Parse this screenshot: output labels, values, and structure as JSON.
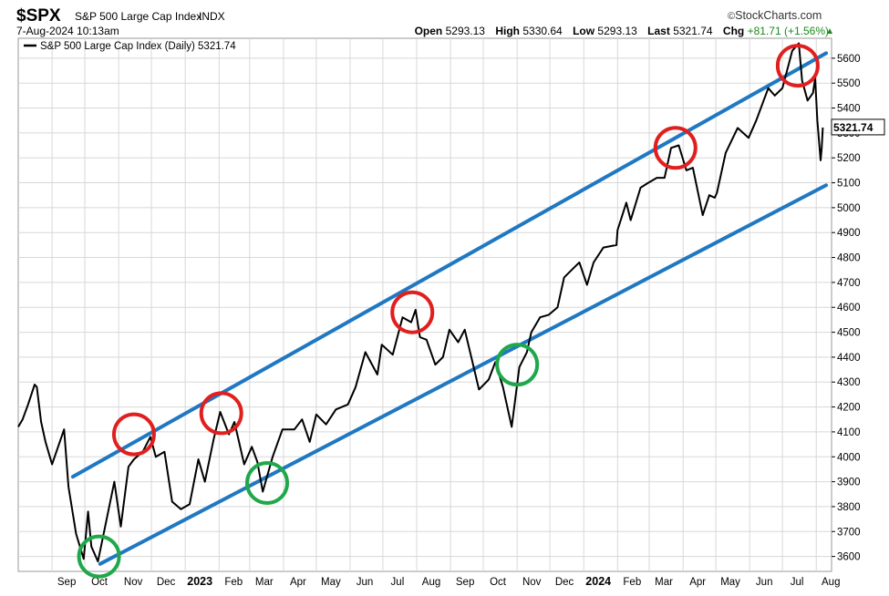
{
  "header": {
    "symbol": "$SPX",
    "name": "S&P 500 Large Cap Index",
    "exchange": "INDX",
    "brand": "StockCharts.com",
    "timestamp": "7-Aug-2024 10:13am",
    "open_label": "Open",
    "open": "5293.13",
    "high_label": "High",
    "high": "5330.64",
    "low_label": "Low",
    "low": "5293.13",
    "last_label": "Last",
    "last": "5321.74",
    "chg_label": "Chg",
    "chg": "+81.71 (+1.56%)"
  },
  "legend": {
    "label": "S&P 500 Large Cap Index (Daily) 5321.74"
  },
  "colors": {
    "price": "#000000",
    "channel": "#1f78c1",
    "resistance": "#e01f1f",
    "support": "#1fa84a",
    "grid": "#d8d8d8"
  },
  "chart_data": {
    "type": "line",
    "ylim": [
      3540,
      5680
    ],
    "y_ticks": [
      3600,
      3700,
      3800,
      3900,
      4000,
      4100,
      4200,
      4300,
      4400,
      4500,
      4600,
      4700,
      4800,
      4900,
      5000,
      5100,
      5200,
      5300,
      5400,
      5500,
      5600
    ],
    "x_range": [
      "2022-08-01",
      "2024-08-15"
    ],
    "x_ticks": [
      {
        "label": "Sep",
        "date": "2022-09-01"
      },
      {
        "label": "Oct",
        "date": "2022-10-01"
      },
      {
        "label": "Nov",
        "date": "2022-11-01"
      },
      {
        "label": "Dec",
        "date": "2022-12-01"
      },
      {
        "label": "2023",
        "date": "2023-01-01",
        "bold": true
      },
      {
        "label": "Feb",
        "date": "2023-02-01"
      },
      {
        "label": "Mar",
        "date": "2023-03-01"
      },
      {
        "label": "Apr",
        "date": "2023-04-01"
      },
      {
        "label": "May",
        "date": "2023-05-01"
      },
      {
        "label": "Jun",
        "date": "2023-06-01"
      },
      {
        "label": "Jul",
        "date": "2023-07-01"
      },
      {
        "label": "Aug",
        "date": "2023-08-01"
      },
      {
        "label": "Sep",
        "date": "2023-09-01"
      },
      {
        "label": "Oct",
        "date": "2023-10-01"
      },
      {
        "label": "Nov",
        "date": "2023-11-01"
      },
      {
        "label": "Dec",
        "date": "2023-12-01"
      },
      {
        "label": "2024",
        "date": "2024-01-01",
        "bold": true
      },
      {
        "label": "Feb",
        "date": "2024-02-01"
      },
      {
        "label": "Mar",
        "date": "2024-03-01"
      },
      {
        "label": "Apr",
        "date": "2024-04-01"
      },
      {
        "label": "May",
        "date": "2024-05-01"
      },
      {
        "label": "Jun",
        "date": "2024-06-01"
      },
      {
        "label": "Jul",
        "date": "2024-07-01"
      },
      {
        "label": "Aug",
        "date": "2024-08-01"
      }
    ],
    "series": [
      {
        "values": [
          [
            "2022-08-01",
            4120
          ],
          [
            "2022-08-05",
            4150
          ],
          [
            "2022-08-10",
            4210
          ],
          [
            "2022-08-16",
            4290
          ],
          [
            "2022-08-18",
            4280
          ],
          [
            "2022-08-22",
            4140
          ],
          [
            "2022-08-26",
            4060
          ],
          [
            "2022-09-01",
            3970
          ],
          [
            "2022-09-12",
            4110
          ],
          [
            "2022-09-16",
            3880
          ],
          [
            "2022-09-23",
            3690
          ],
          [
            "2022-09-30",
            3590
          ],
          [
            "2022-10-04",
            3780
          ],
          [
            "2022-10-07",
            3640
          ],
          [
            "2022-10-13",
            3580
          ],
          [
            "2022-10-21",
            3750
          ],
          [
            "2022-10-28",
            3900
          ],
          [
            "2022-11-03",
            3720
          ],
          [
            "2022-11-10",
            3960
          ],
          [
            "2022-11-15",
            3990
          ],
          [
            "2022-11-23",
            4020
          ],
          [
            "2022-11-30",
            4080
          ],
          [
            "2022-12-05",
            4000
          ],
          [
            "2022-12-13",
            4020
          ],
          [
            "2022-12-20",
            3820
          ],
          [
            "2022-12-28",
            3790
          ],
          [
            "2023-01-05",
            3810
          ],
          [
            "2023-01-13",
            3990
          ],
          [
            "2023-01-19",
            3900
          ],
          [
            "2023-01-27",
            4070
          ],
          [
            "2023-02-02",
            4180
          ],
          [
            "2023-02-10",
            4090
          ],
          [
            "2023-02-15",
            4140
          ],
          [
            "2023-02-24",
            3970
          ],
          [
            "2023-03-03",
            4040
          ],
          [
            "2023-03-08",
            3980
          ],
          [
            "2023-03-13",
            3860
          ],
          [
            "2023-03-22",
            4000
          ],
          [
            "2023-03-31",
            4110
          ],
          [
            "2023-04-11",
            4110
          ],
          [
            "2023-04-18",
            4150
          ],
          [
            "2023-04-25",
            4060
          ],
          [
            "2023-05-01",
            4170
          ],
          [
            "2023-05-10",
            4130
          ],
          [
            "2023-05-19",
            4190
          ],
          [
            "2023-05-30",
            4210
          ],
          [
            "2023-06-06",
            4280
          ],
          [
            "2023-06-15",
            4420
          ],
          [
            "2023-06-26",
            4330
          ],
          [
            "2023-06-30",
            4450
          ],
          [
            "2023-07-10",
            4410
          ],
          [
            "2023-07-19",
            4560
          ],
          [
            "2023-07-27",
            4540
          ],
          [
            "2023-07-31",
            4590
          ],
          [
            "2023-08-04",
            4480
          ],
          [
            "2023-08-10",
            4470
          ],
          [
            "2023-08-18",
            4370
          ],
          [
            "2023-08-25",
            4400
          ],
          [
            "2023-08-31",
            4510
          ],
          [
            "2023-09-08",
            4460
          ],
          [
            "2023-09-14",
            4510
          ],
          [
            "2023-09-20",
            4400
          ],
          [
            "2023-09-27",
            4270
          ],
          [
            "2023-10-06",
            4310
          ],
          [
            "2023-10-12",
            4380
          ],
          [
            "2023-10-19",
            4280
          ],
          [
            "2023-10-27",
            4120
          ],
          [
            "2023-11-03",
            4360
          ],
          [
            "2023-11-10",
            4420
          ],
          [
            "2023-11-14",
            4500
          ],
          [
            "2023-11-22",
            4560
          ],
          [
            "2023-11-30",
            4570
          ],
          [
            "2023-12-08",
            4600
          ],
          [
            "2023-12-14",
            4720
          ],
          [
            "2023-12-21",
            4750
          ],
          [
            "2023-12-28",
            4780
          ],
          [
            "2024-01-04",
            4690
          ],
          [
            "2024-01-10",
            4780
          ],
          [
            "2024-01-19",
            4840
          ],
          [
            "2024-01-31",
            4850
          ],
          [
            "2024-02-01",
            4910
          ],
          [
            "2024-02-09",
            5020
          ],
          [
            "2024-02-13",
            4950
          ],
          [
            "2024-02-22",
            5080
          ],
          [
            "2024-02-29",
            5100
          ],
          [
            "2024-03-08",
            5120
          ],
          [
            "2024-03-15",
            5120
          ],
          [
            "2024-03-21",
            5240
          ],
          [
            "2024-03-28",
            5250
          ],
          [
            "2024-04-04",
            5150
          ],
          [
            "2024-04-10",
            5160
          ],
          [
            "2024-04-19",
            4970
          ],
          [
            "2024-04-25",
            5050
          ],
          [
            "2024-04-30",
            5040
          ],
          [
            "2024-05-02",
            5060
          ],
          [
            "2024-05-10",
            5220
          ],
          [
            "2024-05-21",
            5320
          ],
          [
            "2024-05-31",
            5280
          ],
          [
            "2024-06-07",
            5350
          ],
          [
            "2024-06-18",
            5480
          ],
          [
            "2024-06-24",
            5450
          ],
          [
            "2024-07-01",
            5480
          ],
          [
            "2024-07-10",
            5630
          ],
          [
            "2024-07-16",
            5660
          ],
          [
            "2024-07-19",
            5510
          ],
          [
            "2024-07-24",
            5430
          ],
          [
            "2024-07-29",
            5460
          ],
          [
            "2024-07-31",
            5520
          ],
          [
            "2024-08-02",
            5350
          ],
          [
            "2024-08-05",
            5190
          ],
          [
            "2024-08-06",
            5240
          ],
          [
            "2024-08-07",
            5321.74
          ]
        ]
      }
    ],
    "channel_lines": [
      {
        "from": [
          "2022-09-20",
          3920
        ],
        "to": [
          "2024-08-10",
          5620
        ]
      },
      {
        "from": [
          "2022-10-15",
          3570
        ],
        "to": [
          "2024-08-10",
          5090
        ]
      }
    ],
    "resistance_circles": [
      {
        "date": "2022-11-15",
        "value": 4090
      },
      {
        "date": "2023-02-03",
        "value": 4175
      },
      {
        "date": "2023-07-28",
        "value": 4580
      },
      {
        "date": "2024-03-25",
        "value": 5240
      },
      {
        "date": "2024-07-15",
        "value": 5570
      }
    ],
    "support_circles": [
      {
        "date": "2022-10-14",
        "value": 3600
      },
      {
        "date": "2023-03-17",
        "value": 3895
      },
      {
        "date": "2023-11-01",
        "value": 4370
      }
    ],
    "last_value_label": "5321.74"
  }
}
